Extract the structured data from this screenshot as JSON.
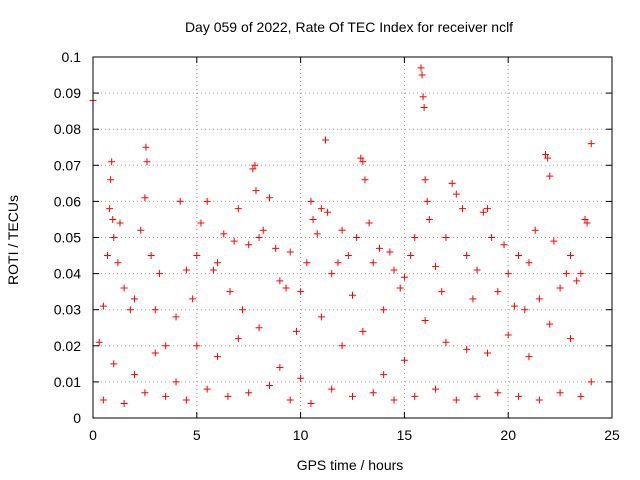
{
  "chart_data": {
    "type": "scatter",
    "title": "Day 059 of 2022, Rate Of TEC Index for receiver nclf",
    "xlabel": "GPS time / hours",
    "ylabel": "ROTI / TECUs",
    "xlim": [
      0,
      25
    ],
    "ylim": [
      0,
      0.1
    ],
    "grid": true,
    "marker": "plus",
    "color": "#ff0000",
    "xticks": [
      "0",
      "5",
      "10",
      "15",
      "20",
      "25"
    ],
    "yticks": [
      "0",
      "0.01",
      "0.02",
      "0.03",
      "0.04",
      "0.05",
      "0.06",
      "0.07",
      "0.08",
      "0.09",
      "0.1"
    ],
    "series": [
      {
        "points": [
          [
            0.0,
            0.088
          ],
          [
            0.3,
            0.021
          ],
          [
            0.5,
            0.031
          ],
          [
            0.7,
            0.045
          ],
          [
            0.8,
            0.058
          ],
          [
            0.85,
            0.066
          ],
          [
            0.9,
            0.071
          ],
          [
            0.95,
            0.055
          ],
          [
            1.0,
            0.05
          ],
          [
            1.2,
            0.043
          ],
          [
            1.3,
            0.054
          ],
          [
            1.5,
            0.036
          ],
          [
            1.8,
            0.03
          ],
          [
            2.0,
            0.033
          ],
          [
            2.3,
            0.052
          ],
          [
            2.5,
            0.061
          ],
          [
            2.55,
            0.075
          ],
          [
            2.6,
            0.071
          ],
          [
            2.8,
            0.045
          ],
          [
            3.0,
            0.03
          ],
          [
            3.2,
            0.04
          ],
          [
            3.5,
            0.02
          ],
          [
            4.0,
            0.028
          ],
          [
            4.2,
            0.06
          ],
          [
            4.5,
            0.041
          ],
          [
            4.8,
            0.033
          ],
          [
            5.0,
            0.045
          ],
          [
            5.2,
            0.054
          ],
          [
            5.5,
            0.06
          ],
          [
            5.8,
            0.041
          ],
          [
            6.0,
            0.043
          ],
          [
            6.3,
            0.051
          ],
          [
            6.6,
            0.035
          ],
          [
            6.8,
            0.049
          ],
          [
            7.0,
            0.058
          ],
          [
            7.2,
            0.03
          ],
          [
            7.5,
            0.048
          ],
          [
            7.7,
            0.069
          ],
          [
            7.8,
            0.07
          ],
          [
            7.85,
            0.063
          ],
          [
            8.0,
            0.05
          ],
          [
            8.2,
            0.052
          ],
          [
            8.5,
            0.061
          ],
          [
            8.8,
            0.047
          ],
          [
            9.0,
            0.038
          ],
          [
            9.3,
            0.036
          ],
          [
            9.5,
            0.046
          ],
          [
            9.8,
            0.024
          ],
          [
            10.0,
            0.035
          ],
          [
            10.3,
            0.043
          ],
          [
            10.5,
            0.06
          ],
          [
            10.6,
            0.055
          ],
          [
            10.8,
            0.051
          ],
          [
            11.0,
            0.058
          ],
          [
            11.2,
            0.077
          ],
          [
            11.3,
            0.057
          ],
          [
            11.5,
            0.04
          ],
          [
            11.8,
            0.043
          ],
          [
            12.0,
            0.052
          ],
          [
            12.3,
            0.045
          ],
          [
            12.5,
            0.034
          ],
          [
            12.7,
            0.05
          ],
          [
            12.9,
            0.072
          ],
          [
            13.0,
            0.071
          ],
          [
            13.1,
            0.066
          ],
          [
            13.3,
            0.054
          ],
          [
            13.5,
            0.043
          ],
          [
            13.8,
            0.047
          ],
          [
            14.0,
            0.03
          ],
          [
            14.3,
            0.046
          ],
          [
            14.5,
            0.041
          ],
          [
            14.8,
            0.036
          ],
          [
            15.0,
            0.039
          ],
          [
            15.3,
            0.045
          ],
          [
            15.5,
            0.05
          ],
          [
            15.8,
            0.097
          ],
          [
            15.85,
            0.095
          ],
          [
            15.9,
            0.089
          ],
          [
            15.95,
            0.086
          ],
          [
            16.0,
            0.066
          ],
          [
            16.1,
            0.06
          ],
          [
            16.2,
            0.055
          ],
          [
            16.5,
            0.042
          ],
          [
            16.8,
            0.035
          ],
          [
            17.0,
            0.05
          ],
          [
            17.3,
            0.065
          ],
          [
            17.5,
            0.062
          ],
          [
            17.8,
            0.058
          ],
          [
            18.0,
            0.045
          ],
          [
            18.3,
            0.033
          ],
          [
            18.5,
            0.041
          ],
          [
            18.8,
            0.057
          ],
          [
            19.0,
            0.058
          ],
          [
            19.2,
            0.05
          ],
          [
            19.5,
            0.035
          ],
          [
            19.8,
            0.048
          ],
          [
            20.0,
            0.04
          ],
          [
            20.3,
            0.031
          ],
          [
            20.5,
            0.045
          ],
          [
            20.8,
            0.03
          ],
          [
            21.0,
            0.043
          ],
          [
            21.3,
            0.052
          ],
          [
            21.5,
            0.033
          ],
          [
            21.8,
            0.073
          ],
          [
            21.9,
            0.072
          ],
          [
            22.0,
            0.067
          ],
          [
            22.2,
            0.049
          ],
          [
            22.5,
            0.036
          ],
          [
            22.8,
            0.04
          ],
          [
            23.0,
            0.045
          ],
          [
            23.3,
            0.038
          ],
          [
            23.5,
            0.04
          ],
          [
            23.7,
            0.055
          ],
          [
            23.8,
            0.054
          ],
          [
            24.0,
            0.076
          ],
          [
            1.0,
            0.015
          ],
          [
            2.0,
            0.012
          ],
          [
            3.0,
            0.018
          ],
          [
            4.0,
            0.01
          ],
          [
            5.0,
            0.02
          ],
          [
            6.0,
            0.017
          ],
          [
            7.0,
            0.022
          ],
          [
            8.0,
            0.025
          ],
          [
            9.0,
            0.014
          ],
          [
            10.0,
            0.011
          ],
          [
            11.0,
            0.028
          ],
          [
            12.0,
            0.02
          ],
          [
            13.0,
            0.024
          ],
          [
            14.0,
            0.012
          ],
          [
            15.0,
            0.016
          ],
          [
            16.0,
            0.027
          ],
          [
            17.0,
            0.021
          ],
          [
            18.0,
            0.019
          ],
          [
            19.0,
            0.018
          ],
          [
            20.0,
            0.023
          ],
          [
            21.0,
            0.017
          ],
          [
            22.0,
            0.026
          ],
          [
            23.0,
            0.022
          ],
          [
            24.0,
            0.01
          ],
          [
            0.5,
            0.005
          ],
          [
            1.5,
            0.004
          ],
          [
            2.5,
            0.007
          ],
          [
            3.5,
            0.006
          ],
          [
            4.5,
            0.005
          ],
          [
            5.5,
            0.008
          ],
          [
            6.5,
            0.006
          ],
          [
            7.5,
            0.007
          ],
          [
            8.5,
            0.009
          ],
          [
            9.5,
            0.005
          ],
          [
            10.5,
            0.004
          ],
          [
            11.5,
            0.008
          ],
          [
            12.5,
            0.006
          ],
          [
            13.5,
            0.007
          ],
          [
            14.5,
            0.005
          ],
          [
            15.5,
            0.006
          ],
          [
            16.5,
            0.008
          ],
          [
            17.5,
            0.005
          ],
          [
            18.5,
            0.006
          ],
          [
            19.5,
            0.007
          ],
          [
            20.5,
            0.006
          ],
          [
            21.5,
            0.005
          ],
          [
            22.5,
            0.007
          ],
          [
            23.5,
            0.006
          ]
        ]
      }
    ]
  }
}
